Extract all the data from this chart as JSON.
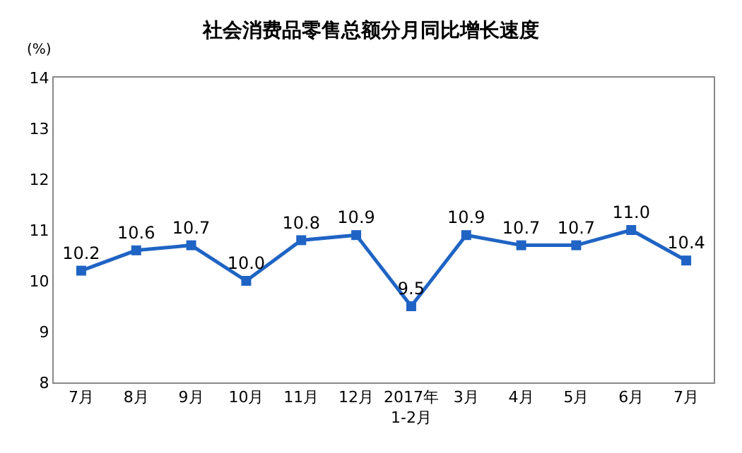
{
  "chart_data": {
    "type": "line",
    "title": "社会消费品零售总额分月同比增长速度",
    "ylabel": "(%)",
    "categories": [
      "7月",
      "8月",
      "9月",
      "10月",
      "11月",
      "12月",
      "2017年\n1-2月",
      "3月",
      "4月",
      "5月",
      "6月",
      "7月"
    ],
    "series": [
      {
        "color": "#1f64c4",
        "values": [
          10.2,
          10.6,
          10.7,
          10.0,
          10.8,
          10.9,
          9.5,
          10.9,
          10.7,
          10.7,
          11.0,
          10.4
        ],
        "value_labels": [
          "10.2",
          "10.6",
          "10.7",
          "10.0",
          "10.8",
          "10.9",
          "9.5",
          "10.9",
          "10.7",
          "10.7",
          "11.0",
          "10.4"
        ]
      }
    ],
    "ylim": [
      8,
      14
    ],
    "yticks": [
      8,
      9,
      10,
      11,
      12,
      13,
      14
    ],
    "marker": "square",
    "line_style": "solid"
  }
}
